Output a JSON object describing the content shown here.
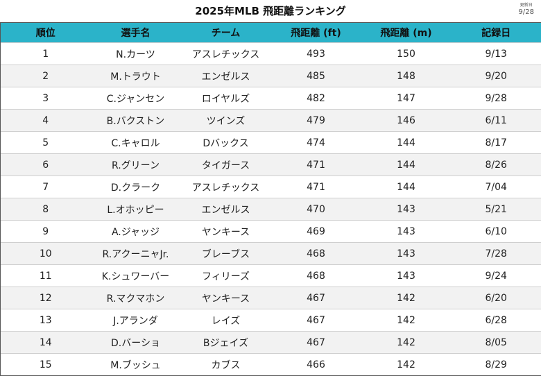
{
  "title": "2025年MLB 飛距離ランキング",
  "updated": {
    "label": "更新日",
    "date": "9/28"
  },
  "columns": [
    "順位",
    "選手名",
    "チーム",
    "飛距離 (ft)",
    "飛距離 (m)",
    "記録日"
  ],
  "rows": [
    [
      "1",
      "N.カーツ",
      "アスレチックス",
      "493",
      "150",
      "9/13"
    ],
    [
      "2",
      "M.トラウト",
      "エンゼルス",
      "485",
      "148",
      "9/20"
    ],
    [
      "3",
      "C.ジャンセン",
      "ロイヤルズ",
      "482",
      "147",
      "9/28"
    ],
    [
      "4",
      "B.バクストン",
      "ツインズ",
      "479",
      "146",
      "6/11"
    ],
    [
      "5",
      "C.キャロル",
      "Dバックス",
      "474",
      "144",
      "8/17"
    ],
    [
      "6",
      "R.グリーン",
      "タイガース",
      "471",
      "144",
      "8/26"
    ],
    [
      "7",
      "D.クラーク",
      "アスレチックス",
      "471",
      "144",
      "7/04"
    ],
    [
      "8",
      "L.オホッピー",
      "エンゼルス",
      "470",
      "143",
      "5/21"
    ],
    [
      "9",
      "A.ジャッジ",
      "ヤンキース",
      "469",
      "143",
      "6/10"
    ],
    [
      "10",
      "R.アクーニャJr.",
      "ブレーブス",
      "468",
      "143",
      "7/28"
    ],
    [
      "11",
      "K.シュワーバー",
      "フィリーズ",
      "468",
      "143",
      "9/24"
    ],
    [
      "12",
      "R.マクマホン",
      "ヤンキース",
      "467",
      "142",
      "6/20"
    ],
    [
      "13",
      "J.アランダ",
      "レイズ",
      "467",
      "142",
      "6/28"
    ],
    [
      "14",
      "D.バーショ",
      "Bジェイズ",
      "467",
      "142",
      "8/05"
    ],
    [
      "15",
      "M.ブッシュ",
      "カブス",
      "466",
      "142",
      "8/29"
    ]
  ]
}
